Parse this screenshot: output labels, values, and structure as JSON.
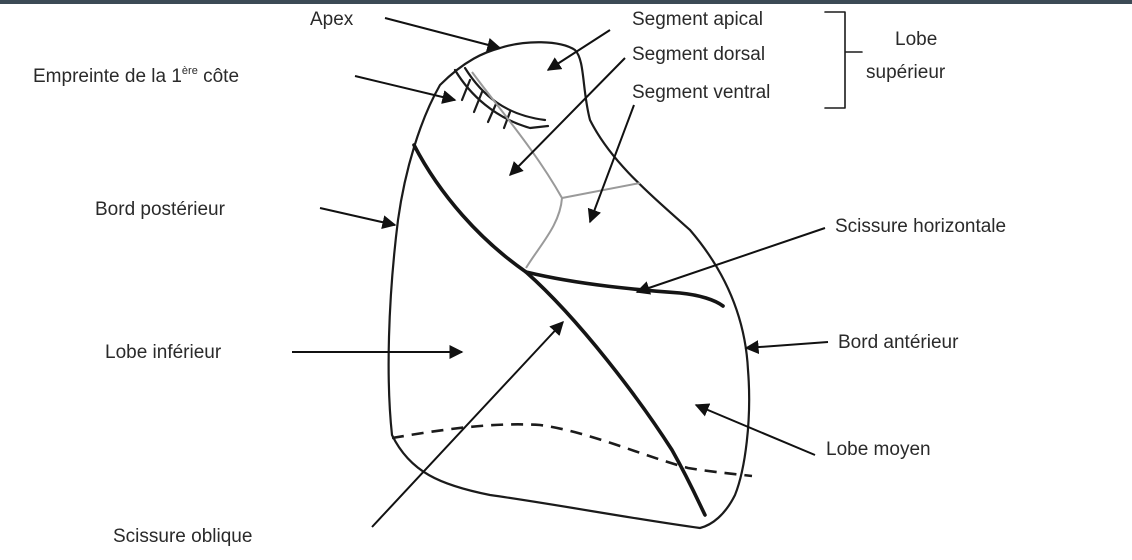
{
  "labels": {
    "apex": "Apex",
    "empreinte_prefix": "Empreinte de la 1",
    "empreinte_sup": "ère",
    "empreinte_suffix": " côte",
    "segment_apical": "Segment apical",
    "segment_dorsal": "Segment dorsal",
    "segment_ventral": "Segment ventral",
    "lobe_superieur_line1": "Lobe",
    "lobe_superieur_line2": "supérieur",
    "bord_posterieur": "Bord postérieur",
    "scissure_horizontale": "Scissure horizontale",
    "lobe_inferieur": "Lobe inférieur",
    "bord_anterieur": "Bord antérieur",
    "lobe_moyen": "Lobe moyen",
    "scissure_oblique": "Scissure oblique"
  },
  "colors": {
    "top_bar": "#3c4a55",
    "line": "#1b1b1b",
    "segment_line": "#9a9a9a",
    "text": "#2a2a2a"
  }
}
